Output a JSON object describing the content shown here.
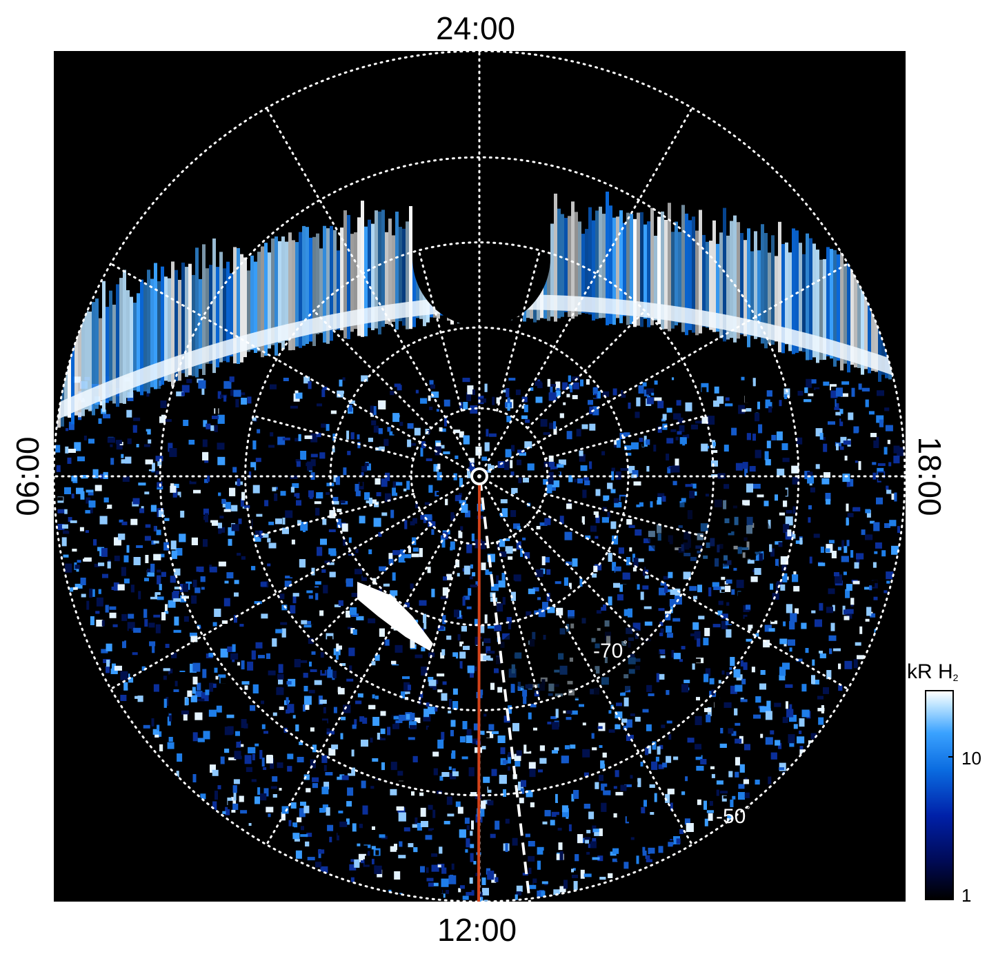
{
  "map": {
    "local_time_labels": {
      "top": "24:00",
      "bottom": "12:00",
      "left": "06:00",
      "right": "18:00"
    },
    "latitude_labels": [
      {
        "text": "-70",
        "unit": "°",
        "latitude": -70
      },
      {
        "text": "-50",
        "unit": "°",
        "latitude": -50
      }
    ],
    "colors": {
      "background": "#000000",
      "grid": "#ffffff",
      "noon_meridian_line": "#d2421a",
      "footprint_track": "#ffffff"
    }
  },
  "colorbar": {
    "title": "kR H",
    "title_subscript": "2",
    "ticks": [
      {
        "label": "10",
        "value": 10
      },
      {
        "label": "1",
        "value": 1
      }
    ],
    "colormap": [
      "#000000",
      "#000a55",
      "#0020a8",
      "#0a6be0",
      "#3aa2ff",
      "#b9e2ff",
      "#ffffff"
    ]
  }
}
